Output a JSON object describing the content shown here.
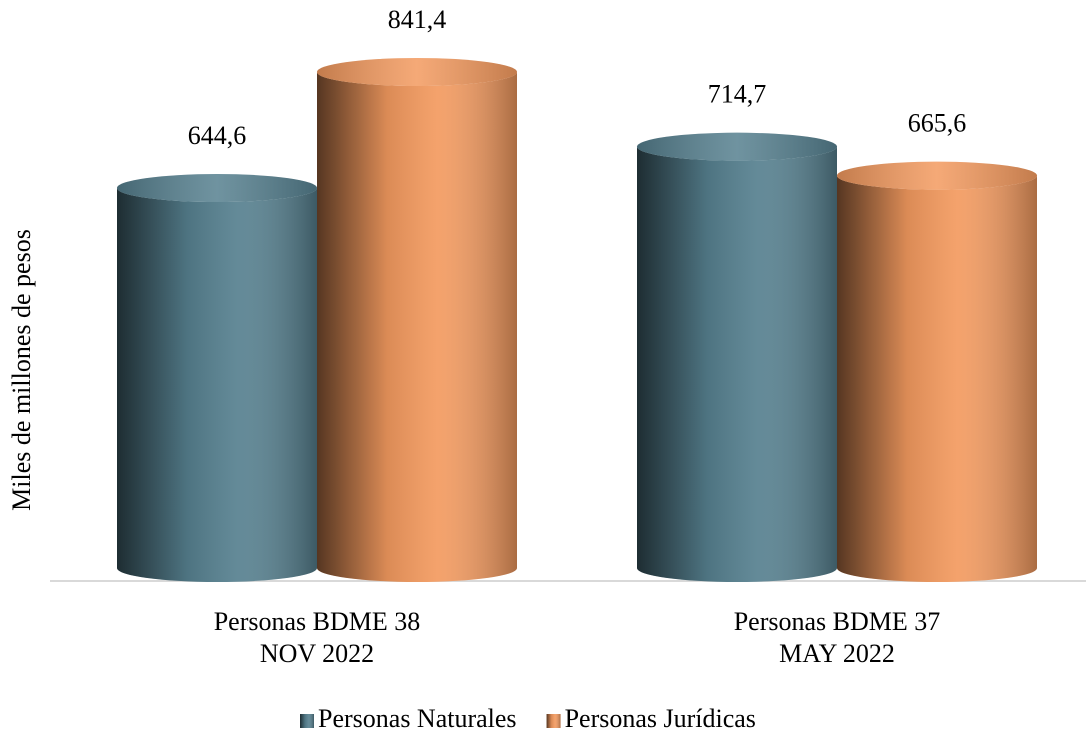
{
  "chart_data": {
    "type": "bar",
    "y_label": "Miles de millones de pesos",
    "categories": [
      "Personas BDME 38\nNOV 2022",
      "Personas BDME 37\nMAY 2022"
    ],
    "series": [
      {
        "name": "Personas Naturales",
        "color": "#56808f",
        "values": [
          644.6,
          714.7
        ],
        "value_labels": [
          "644,6",
          "714,7"
        ]
      },
      {
        "name": "Personas Jurídicas",
        "color": "#f39a5f",
        "values": [
          841.4,
          665.6
        ],
        "value_labels": [
          "841,4",
          "665,6"
        ]
      }
    ],
    "legend": "bottom"
  }
}
